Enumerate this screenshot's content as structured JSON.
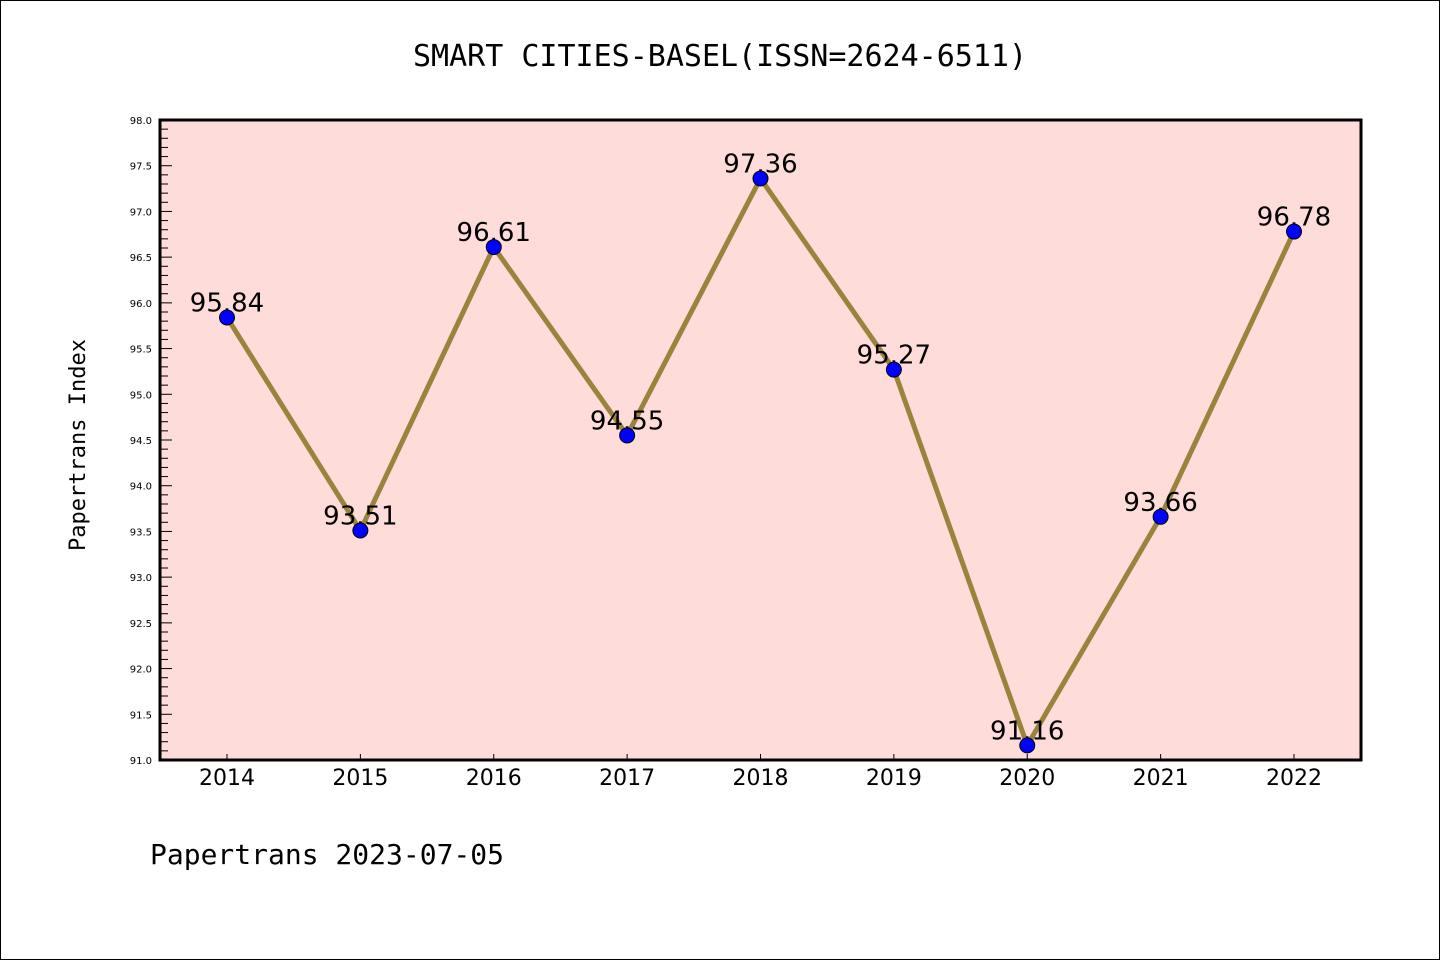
{
  "chart_data": {
    "type": "line",
    "title": "SMART CITIES-BASEL(ISSN=2624-6511)",
    "xlabel": "",
    "ylabel": "Papertrans Index",
    "categories": [
      "2014",
      "2015",
      "2016",
      "2017",
      "2018",
      "2019",
      "2020",
      "2021",
      "2022"
    ],
    "series": [
      {
        "name": "Papertrans Index",
        "values": [
          95.84,
          93.51,
          96.61,
          94.55,
          97.36,
          95.27,
          91.16,
          93.66,
          96.78
        ],
        "labels": [
          "95.84",
          "93.51",
          "96.61",
          "94.55",
          "97.36",
          "95.27",
          "91.16",
          "93.66",
          "96.78"
        ],
        "line_color": "#9a843c",
        "marker_color": "#0000ff"
      }
    ],
    "ylim": [
      91.0,
      98.0
    ],
    "yticks": [
      "91.0",
      "91.5",
      "92.0",
      "92.5",
      "93.0",
      "93.5",
      "94.0",
      "94.5",
      "95.0",
      "95.5",
      "96.0",
      "96.5",
      "97.0",
      "97.5",
      "98.0"
    ],
    "grid": false,
    "plot_background": "#fddcda"
  },
  "footer": "Papertrans 2023-07-05"
}
